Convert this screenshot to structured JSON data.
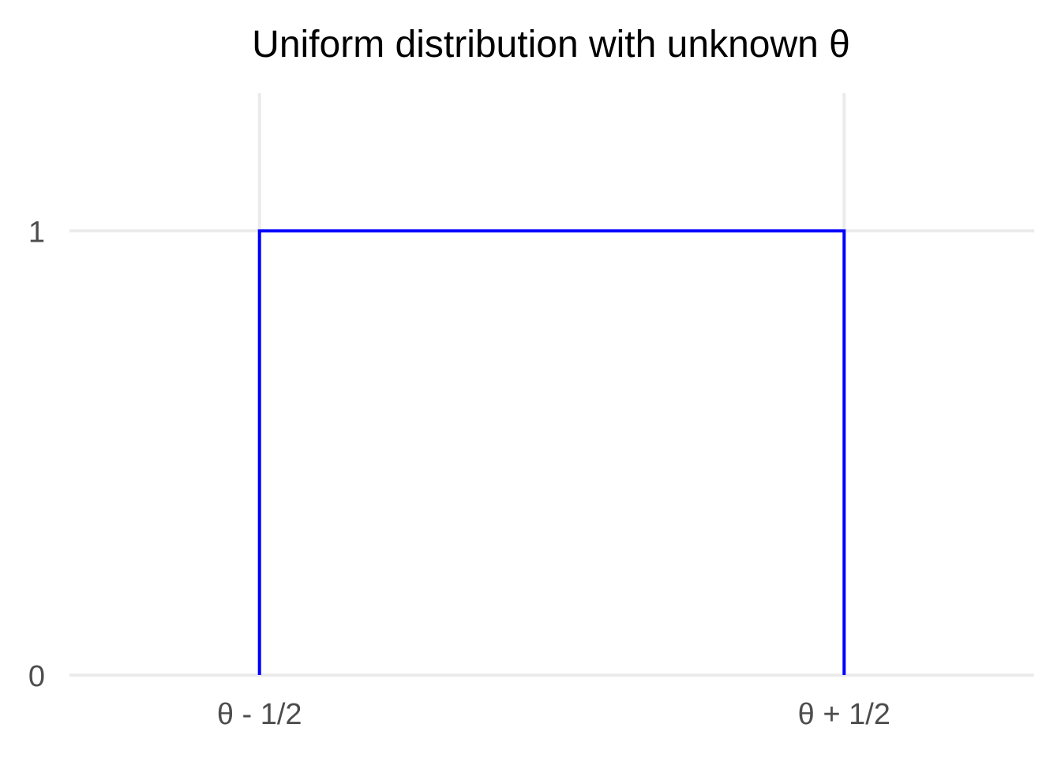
{
  "chart_data": {
    "type": "line",
    "title": "Uniform distribution with unknown θ",
    "xlabel": "",
    "ylabel": "",
    "x_ticks": [
      {
        "value": 0,
        "label": "θ - 1/2"
      },
      {
        "value": 1,
        "label": "θ + 1/2"
      }
    ],
    "y_ticks": [
      {
        "value": 0,
        "label": "0"
      },
      {
        "value": 1,
        "label": "1"
      }
    ],
    "xlim": [
      -0.325,
      1.325
    ],
    "ylim": [
      0,
      1.31
    ],
    "grid": true,
    "series": [
      {
        "color": "#0000ff",
        "points": [
          {
            "x": 0,
            "y": 0
          },
          {
            "x": 0,
            "y": 1
          },
          {
            "x": 1,
            "y": 1
          },
          {
            "x": 1,
            "y": 0
          }
        ]
      }
    ]
  },
  "colors": {
    "grid": "#ebebeb",
    "series": "#0000ff",
    "tick_text": "#4d4d4d",
    "title": "#000000"
  }
}
